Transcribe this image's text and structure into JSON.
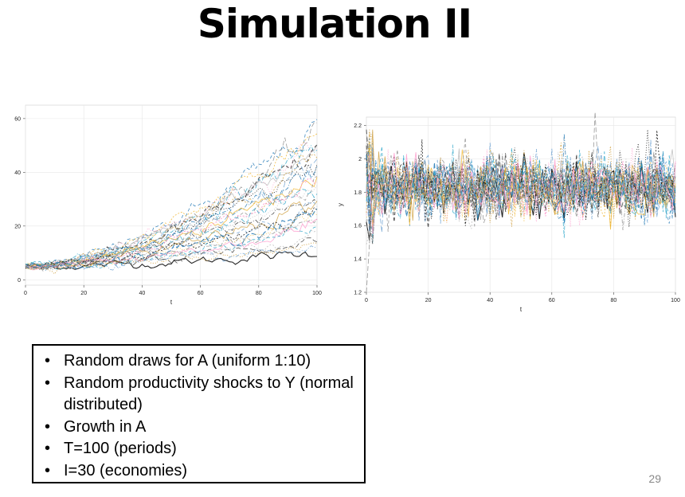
{
  "slide": {
    "title": "Simulation II",
    "page_number": "29",
    "bullets": [
      "Random draws for A (uniform 1:10)",
      "Random productivity shocks to Y (normal distributed)",
      "Growth in A",
      "T=100 (periods)",
      "I=30 (economies)"
    ]
  },
  "colors": {
    "series_palette": [
      "#000000",
      "#1f77b4",
      "#f0b429",
      "#888888",
      "#ff99cc",
      "#2ba6c9",
      "#b8b8b8",
      "#3a3a3a",
      "#d0a040",
      "#6a9fd0"
    ]
  },
  "chart_data": [
    {
      "type": "line",
      "xlabel": "t",
      "ylabel": "",
      "x_ticks": [
        "0",
        "20",
        "40",
        "60",
        "80",
        "100"
      ],
      "y_ticks": [
        "0",
        "20",
        "40",
        "60"
      ],
      "xlim": [
        0,
        100
      ],
      "ylim": [
        -2,
        65
      ],
      "grid": true,
      "legend": "none",
      "n_series": 30,
      "series_summary": {
        "start_value": 5,
        "end_values_range": [
          10,
          57
        ],
        "trend": "exponential growth with noise"
      }
    },
    {
      "type": "line",
      "xlabel": "t",
      "ylabel": "y",
      "x_ticks": [
        "0",
        "20",
        "40",
        "60",
        "80",
        "100"
      ],
      "y_ticks": [
        "1.2",
        "1.4",
        "1.6",
        "1.8",
        "2",
        "2.2"
      ],
      "xlim": [
        0,
        100
      ],
      "ylim": [
        1.2,
        2.25
      ],
      "grid": true,
      "legend": "none",
      "n_series": 30,
      "series_summary": {
        "mean": 1.83,
        "typical_range": [
          1.6,
          2.05
        ],
        "outliers": [
          {
            "t": 74,
            "y": 2.28
          },
          {
            "t": 0,
            "y": 1.2
          }
        ]
      }
    }
  ]
}
